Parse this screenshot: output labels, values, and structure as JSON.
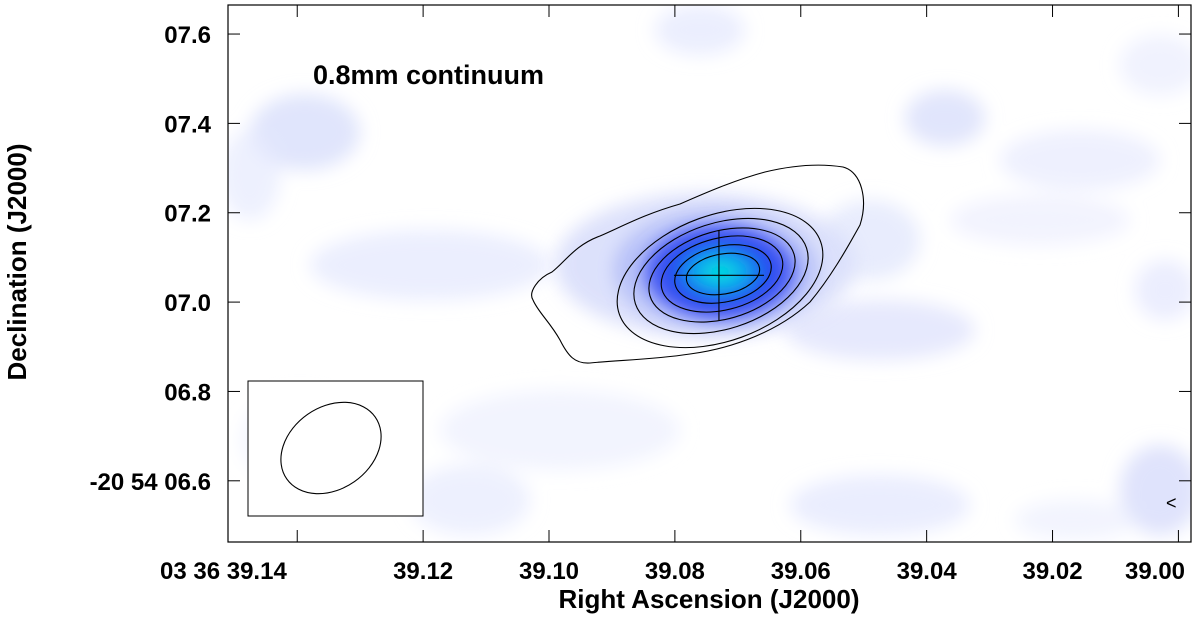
{
  "chart_data": {
    "type": "heatmap",
    "title": "",
    "annotation": "0.8mm continuum",
    "xlabel": "Right Ascension (J2000)",
    "ylabel": "Declination (J2000)",
    "x_unit": "seconds of RA (03 36 ss.ss)",
    "y_unit": "arcsec of Dec (-20 54 ss.s)",
    "xlim": [
      39.151,
      38.998
    ],
    "ylim": [
      7.665,
      6.463
    ],
    "x_ticks": [
      {
        "value": 39.14,
        "label": "03 36 39.14"
      },
      {
        "value": 39.12,
        "label": "39.12"
      },
      {
        "value": 39.1,
        "label": "39.10"
      },
      {
        "value": 39.08,
        "label": "39.08"
      },
      {
        "value": 39.06,
        "label": "39.06"
      },
      {
        "value": 39.04,
        "label": "39.04"
      },
      {
        "value": 39.02,
        "label": "39.02"
      },
      {
        "value": 39.0,
        "label": "39.00"
      }
    ],
    "y_ticks": [
      {
        "value": 6.6,
        "label": "-20 54 06.6"
      },
      {
        "value": 6.8,
        "label": "06.8"
      },
      {
        "value": 7.0,
        "label": "07.0"
      },
      {
        "value": 7.2,
        "label": "07.2"
      },
      {
        "value": 7.4,
        "label": "07.4"
      },
      {
        "value": 7.6,
        "label": "07.6"
      }
    ],
    "peak_marker": {
      "ra": 39.073,
      "dec": 7.06
    },
    "colormap": {
      "low": "#ffffff",
      "mid": "#2c3cf0",
      "high": "#00e8e0"
    },
    "contour_color": "#000000",
    "grid": false,
    "legend": "none",
    "corner_symbol": "<"
  }
}
